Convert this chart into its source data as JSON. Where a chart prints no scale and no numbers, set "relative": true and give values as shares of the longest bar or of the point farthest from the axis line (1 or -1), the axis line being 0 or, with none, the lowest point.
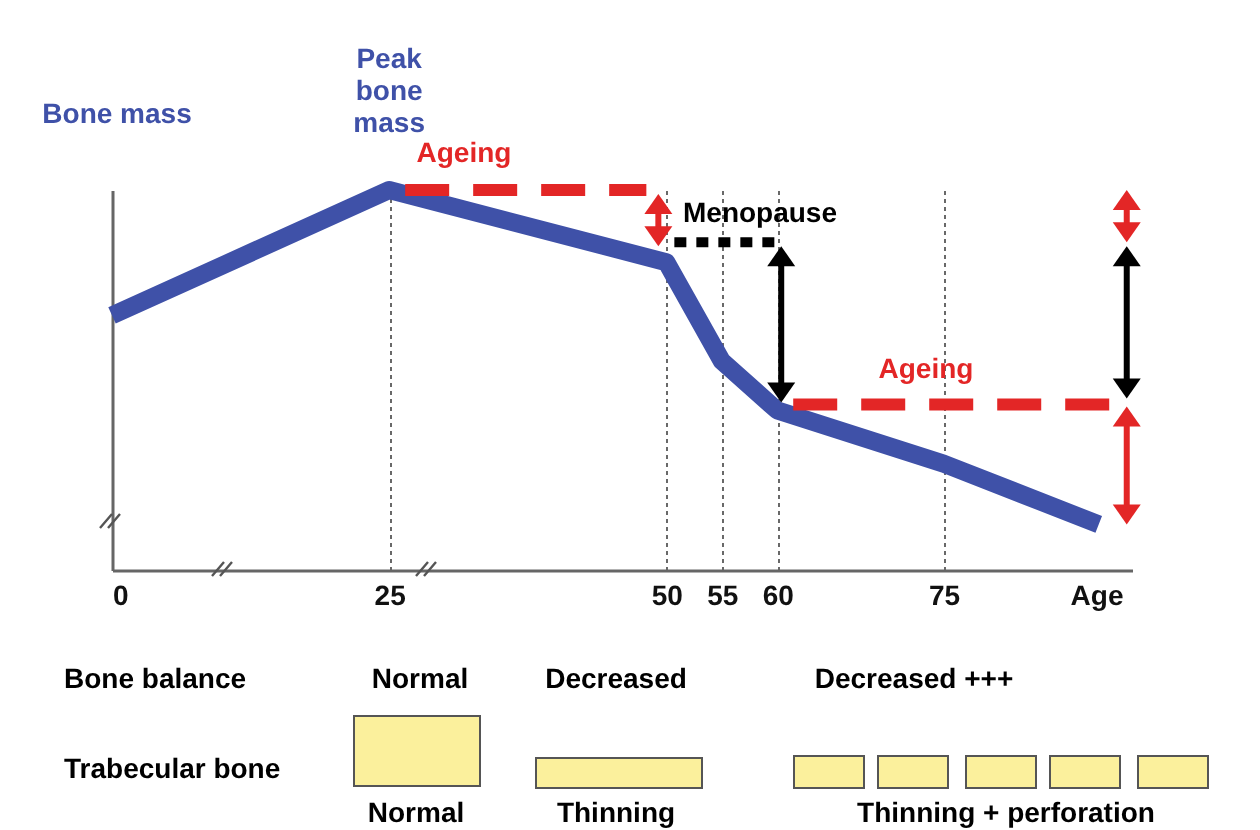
{
  "chart_data": {
    "type": "line",
    "ylabel": "Bone mass",
    "xlabel": "Age",
    "x": [
      0,
      25,
      50,
      55,
      60,
      75,
      89
    ],
    "series": [
      {
        "color": "#3f51a8",
        "values": [
          0.67,
          1,
          0.81,
          0.55,
          0.42,
          0.28,
          0.12
        ]
      }
    ],
    "relative": true,
    "xlim": [
      0,
      92
    ],
    "xticks": [
      0,
      25,
      50,
      55,
      60,
      75
    ],
    "grid": "x",
    "line_style": "solid",
    "marker": "none",
    "annotations": [
      {
        "text": "Peak bone mass",
        "x": 25,
        "y": 1
      },
      "Ageing",
      "Menopause",
      "Ageing",
      "Bone balance",
      "Normal",
      "Decreased",
      "Decreased +++",
      "Trabecular bone",
      "Normal",
      "Thinning",
      "Thinning + perforation"
    ]
  }
}
